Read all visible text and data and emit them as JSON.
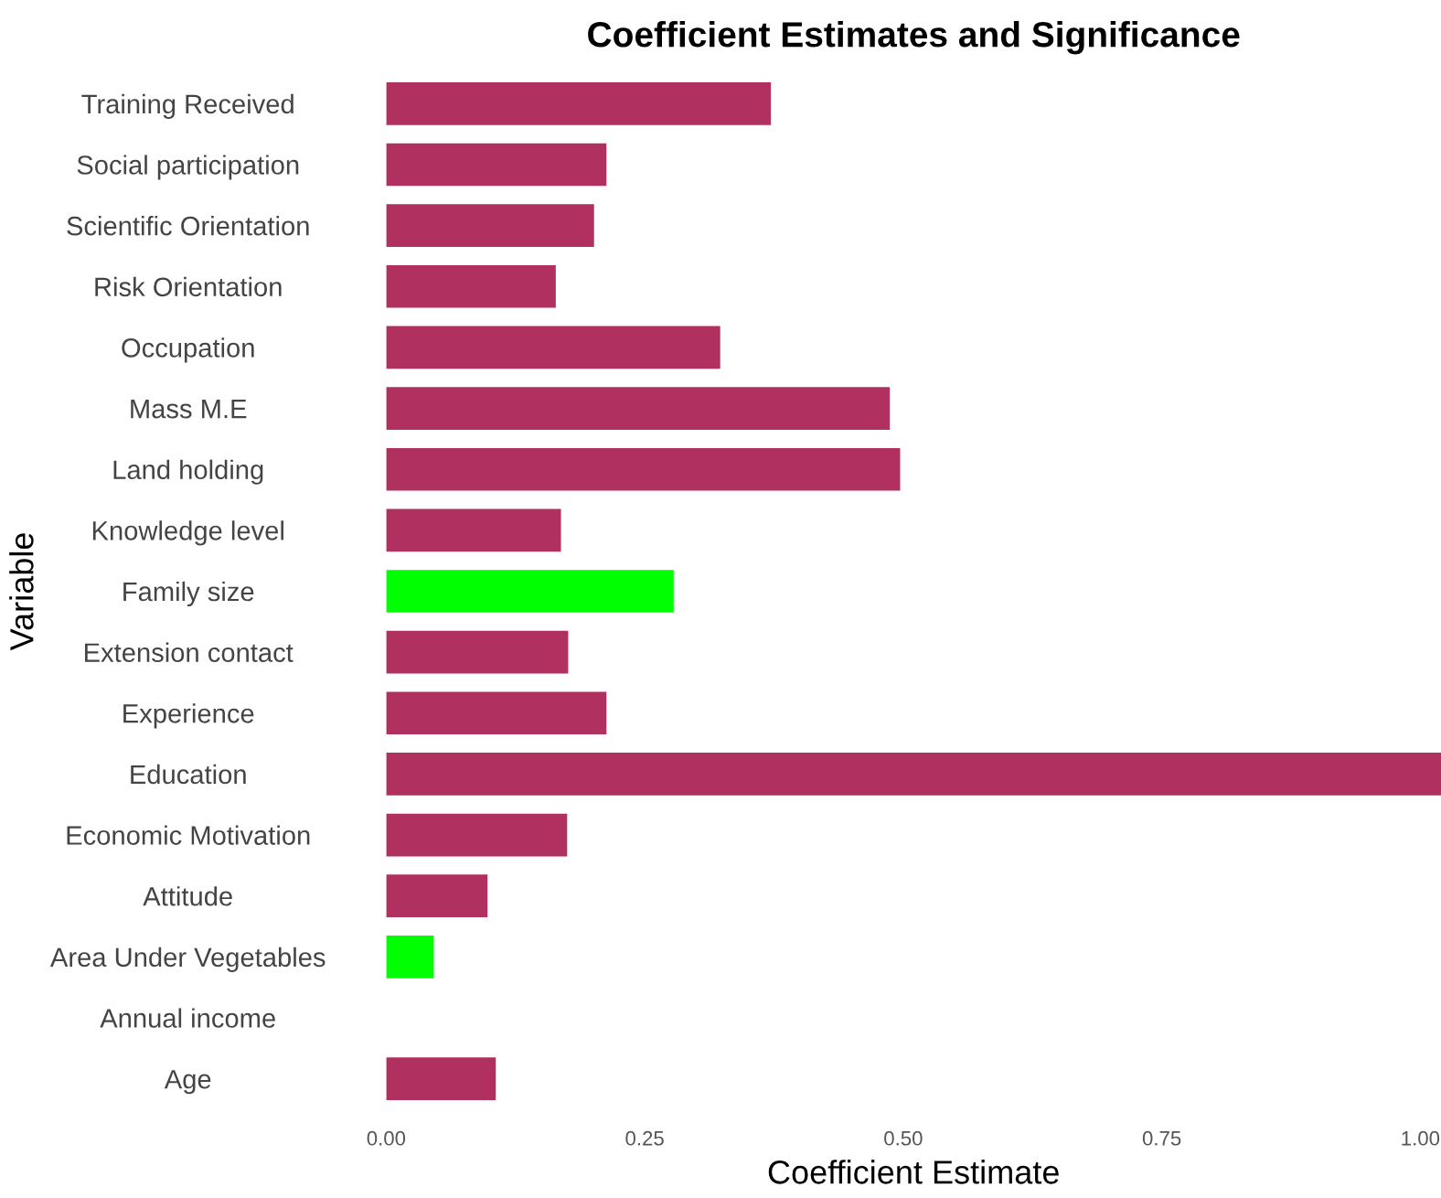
{
  "chart_data": {
    "type": "bar",
    "orientation": "horizontal",
    "title": "Coefficient Estimates and Significance",
    "xlabel": "Coefficient Estimate",
    "ylabel": "Variable",
    "categories": [
      "Training Received",
      "Social participation",
      "Scientific Orientation",
      "Risk Orientation",
      "Occupation",
      "Mass M.E",
      "Land holding",
      "Knowledge level",
      "Family size",
      "Extension contact",
      "Experience",
      "Education",
      "Economic Motivation",
      "Attitude",
      "Area Under Vegetables",
      "Annual income",
      "Age"
    ],
    "values": [
      0.372,
      0.213,
      0.201,
      0.164,
      0.323,
      0.487,
      0.497,
      0.169,
      0.278,
      0.176,
      0.213,
      1.02,
      0.175,
      0.098,
      0.046,
      null,
      0.106
    ],
    "colors": [
      "#b03060",
      "#b03060",
      "#b03060",
      "#b03060",
      "#b03060",
      "#b03060",
      "#b03060",
      "#b03060",
      "#00ff00",
      "#b03060",
      "#b03060",
      "#b03060",
      "#b03060",
      "#b03060",
      "#00ff00",
      "#b03060",
      "#b03060"
    ],
    "xlim": [
      0,
      1.02
    ],
    "xticks": [
      {
        "value": 0,
        "label": "0.00"
      },
      {
        "value": 0.25,
        "label": "0.25"
      },
      {
        "value": 0.5,
        "label": "0.50"
      },
      {
        "value": 0.75,
        "label": "0.75"
      },
      {
        "value": 1,
        "label": "1.00"
      }
    ],
    "grid": false,
    "legend": false
  }
}
